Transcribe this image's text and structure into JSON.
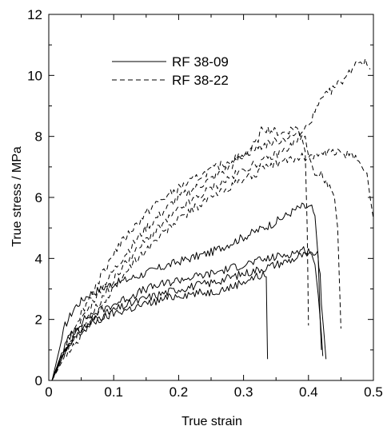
{
  "chart_data": {
    "type": "line",
    "title": "",
    "xlabel": "True strain",
    "ylabel": "True stress / MPa",
    "xlim": [
      0,
      0.5
    ],
    "ylim": [
      0,
      12
    ],
    "xticks": [
      0,
      0.1,
      0.2,
      0.3,
      0.4,
      0.5
    ],
    "xtick_labels": [
      "0",
      "0.1",
      "0.2",
      "0.3",
      "0.4",
      "0.5"
    ],
    "yticks": [
      0,
      2,
      4,
      6,
      8,
      10,
      12
    ],
    "ytick_labels": [
      "0",
      "2",
      "4",
      "6",
      "8",
      "10",
      "12"
    ],
    "grid": false,
    "legend_position": "top-center",
    "series": [
      {
        "name": "RF 38-09",
        "style": "solid",
        "curves": [
          [
            [
              0.005,
              0
            ],
            [
              0.015,
              0.9
            ],
            [
              0.025,
              1.8
            ],
            [
              0.04,
              2.4
            ],
            [
              0.06,
              2.8
            ],
            [
              0.09,
              3.1
            ],
            [
              0.12,
              3.3
            ],
            [
              0.16,
              3.6
            ],
            [
              0.2,
              3.9
            ],
            [
              0.25,
              4.2
            ],
            [
              0.3,
              4.7
            ],
            [
              0.35,
              5.2
            ],
            [
              0.38,
              5.6
            ],
            [
              0.39,
              5.7
            ],
            [
              0.405,
              5.65
            ],
            [
              0.41,
              5.4
            ],
            [
              0.415,
              4.0
            ],
            [
              0.418,
              2.0
            ],
            [
              0.42,
              1.0
            ]
          ],
          [
            [
              0.005,
              0
            ],
            [
              0.02,
              0.9
            ],
            [
              0.035,
              1.6
            ],
            [
              0.06,
              2.1
            ],
            [
              0.1,
              2.5
            ],
            [
              0.15,
              3.0
            ],
            [
              0.2,
              3.3
            ],
            [
              0.25,
              3.5
            ],
            [
              0.3,
              3.8
            ],
            [
              0.35,
              4.05
            ],
            [
              0.38,
              4.2
            ],
            [
              0.395,
              4.3
            ],
            [
              0.405,
              4.2
            ],
            [
              0.41,
              3.8
            ],
            [
              0.415,
              2.8
            ],
            [
              0.42,
              1.5
            ],
            [
              0.422,
              0.8
            ]
          ],
          [
            [
              0.005,
              0
            ],
            [
              0.02,
              0.8
            ],
            [
              0.04,
              1.5
            ],
            [
              0.07,
              2.0
            ],
            [
              0.1,
              2.3
            ],
            [
              0.15,
              2.7
            ],
            [
              0.2,
              3.0
            ],
            [
              0.25,
              3.2
            ],
            [
              0.3,
              3.5
            ],
            [
              0.35,
              3.8
            ],
            [
              0.38,
              4.0
            ],
            [
              0.39,
              4.1
            ],
            [
              0.4,
              4.05
            ],
            [
              0.408,
              4.2
            ],
            [
              0.414,
              4.1
            ],
            [
              0.418,
              3.5
            ],
            [
              0.42,
              2.5
            ],
            [
              0.424,
              1.5
            ],
            [
              0.427,
              0.7
            ]
          ],
          [
            [
              0.005,
              0
            ],
            [
              0.02,
              0.7
            ],
            [
              0.04,
              1.4
            ],
            [
              0.07,
              1.9
            ],
            [
              0.1,
              2.2
            ],
            [
              0.15,
              2.5
            ],
            [
              0.2,
              2.8
            ],
            [
              0.25,
              2.9
            ],
            [
              0.28,
              3.05
            ],
            [
              0.3,
              3.25
            ],
            [
              0.32,
              3.4
            ],
            [
              0.33,
              3.45
            ],
            [
              0.335,
              3.4
            ],
            [
              0.336,
              2.0
            ],
            [
              0.337,
              0.7
            ]
          ]
        ]
      },
      {
        "name": "RF 38-22",
        "style": "dashed",
        "curves": [
          [
            [
              0.005,
              0
            ],
            [
              0.02,
              0.9
            ],
            [
              0.04,
              1.8
            ],
            [
              0.06,
              2.6
            ],
            [
              0.08,
              3.4
            ],
            [
              0.1,
              4.2
            ],
            [
              0.13,
              5.0
            ],
            [
              0.16,
              5.7
            ],
            [
              0.2,
              6.3
            ],
            [
              0.25,
              6.9
            ],
            [
              0.3,
              7.4
            ],
            [
              0.33,
              7.7
            ],
            [
              0.36,
              7.9
            ],
            [
              0.38,
              8.05
            ],
            [
              0.395,
              8.0
            ],
            [
              0.4,
              7.5
            ],
            [
              0.405,
              7.0
            ],
            [
              0.41,
              6.8
            ],
            [
              0.42,
              6.8
            ],
            [
              0.44,
              6.0
            ],
            [
              0.445,
              5.0
            ],
            [
              0.448,
              3.0
            ],
            [
              0.45,
              1.7
            ]
          ],
          [
            [
              0.005,
              0
            ],
            [
              0.02,
              0.8
            ],
            [
              0.04,
              1.6
            ],
            [
              0.06,
              2.3
            ],
            [
              0.08,
              3.0
            ],
            [
              0.1,
              3.6
            ],
            [
              0.12,
              4.2
            ],
            [
              0.15,
              5.0
            ],
            [
              0.2,
              6.0
            ],
            [
              0.25,
              6.6
            ],
            [
              0.28,
              7.0
            ],
            [
              0.3,
              7.4
            ],
            [
              0.32,
              7.8
            ],
            [
              0.33,
              8.3
            ],
            [
              0.34,
              8.2
            ],
            [
              0.36,
              8.1
            ],
            [
              0.38,
              8.3
            ],
            [
              0.39,
              8.0
            ],
            [
              0.395,
              7.5
            ],
            [
              0.398,
              5.0
            ],
            [
              0.4,
              1.8
            ]
          ],
          [
            [
              0.005,
              0
            ],
            [
              0.02,
              0.6
            ],
            [
              0.04,
              1.2
            ],
            [
              0.06,
              1.8
            ],
            [
              0.08,
              2.4
            ],
            [
              0.1,
              3.0
            ],
            [
              0.12,
              3.6
            ],
            [
              0.15,
              4.3
            ],
            [
              0.2,
              5.3
            ],
            [
              0.25,
              6.0
            ],
            [
              0.3,
              6.6
            ],
            [
              0.35,
              7.1
            ],
            [
              0.38,
              7.3
            ],
            [
              0.4,
              7.35
            ],
            [
              0.42,
              7.4
            ],
            [
              0.44,
              7.5
            ],
            [
              0.46,
              7.4
            ],
            [
              0.48,
              7.2
            ],
            [
              0.49,
              6.8
            ],
            [
              0.495,
              6.0
            ],
            [
              0.5,
              5.3
            ]
          ],
          [
            [
              0.005,
              0
            ],
            [
              0.02,
              0.7
            ],
            [
              0.04,
              1.4
            ],
            [
              0.06,
              2.0
            ],
            [
              0.08,
              2.6
            ],
            [
              0.1,
              3.3
            ],
            [
              0.12,
              3.9
            ],
            [
              0.15,
              4.6
            ],
            [
              0.2,
              5.6
            ],
            [
              0.25,
              6.3
            ],
            [
              0.3,
              6.9
            ],
            [
              0.33,
              7.2
            ],
            [
              0.36,
              7.5
            ],
            [
              0.38,
              7.8
            ],
            [
              0.4,
              8.4
            ],
            [
              0.42,
              9.2
            ],
            [
              0.44,
              9.6
            ],
            [
              0.46,
              10.0
            ],
            [
              0.475,
              10.5
            ],
            [
              0.49,
              10.4
            ],
            [
              0.495,
              10.2
            ]
          ]
        ]
      }
    ]
  }
}
